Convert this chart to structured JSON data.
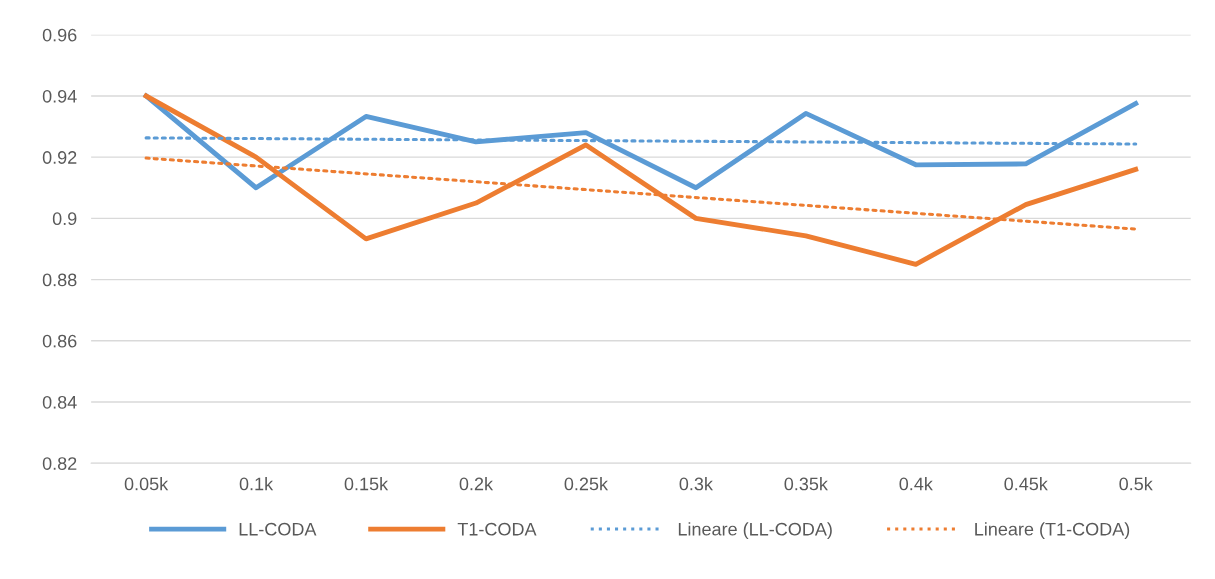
{
  "chart_data": {
    "type": "line",
    "categories": [
      "0.05k",
      "0.1k",
      "0.15k",
      "0.2k",
      "0.25k",
      "0.3k",
      "0.35k",
      "0.4k",
      "0.45k",
      "0.5k"
    ],
    "series": [
      {
        "name": "LL-CODA",
        "color": "#5b9bd5",
        "values": [
          0.94,
          0.91,
          0.9333,
          0.925,
          0.928,
          0.91,
          0.9343,
          0.9175,
          0.9178,
          0.9375
        ]
      },
      {
        "name": "T1-CODA",
        "color": "#ed7d31",
        "values": [
          0.94,
          0.92,
          0.8933,
          0.905,
          0.924,
          0.9,
          0.8943,
          0.885,
          0.9045,
          0.916
        ]
      },
      {
        "name": "Lineare (LL-CODA)",
        "color": "#5b9bd5",
        "line_style": "dotted",
        "x": [
          "0.05k",
          "0.5k"
        ],
        "values": [
          0.9263,
          0.9243
        ]
      },
      {
        "name": "Lineare (T1-CODA)",
        "color": "#ed7d31",
        "line_style": "dotted",
        "x": [
          "0.05k",
          "0.5k"
        ],
        "values": [
          0.9197,
          0.8965
        ]
      }
    ],
    "ylim": [
      0.82,
      0.96
    ],
    "yticks": [
      0.82,
      0.84,
      0.86,
      0.88,
      0.9,
      0.92,
      0.94,
      0.96
    ],
    "grid": "y",
    "legend": "bottom",
    "line_style": "solid",
    "marker": "none"
  }
}
